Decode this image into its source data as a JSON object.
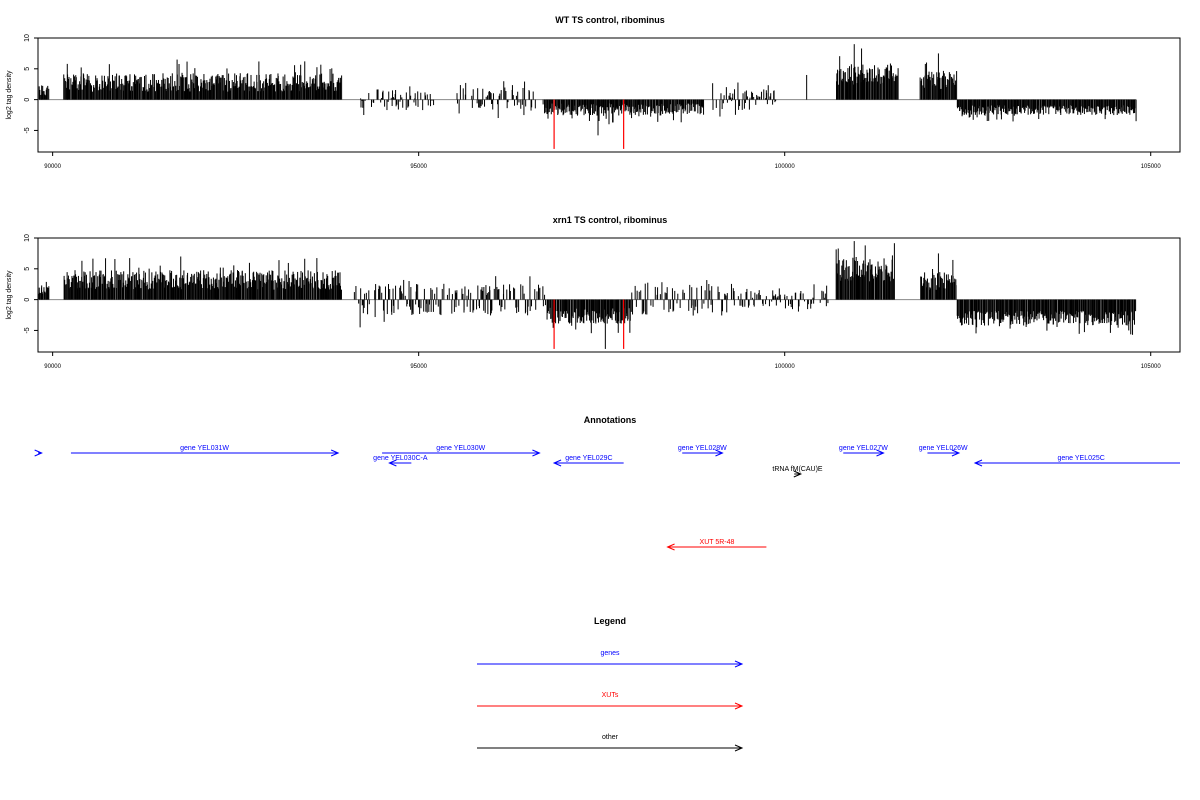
{
  "colors": {
    "genes": "#0000ff",
    "xuts": "#ff0000",
    "other": "#000000",
    "signal": "#000000",
    "highlight": "#ff0000",
    "baseline": "#888888"
  },
  "chart_data": [
    {
      "type": "bar",
      "title": "WT TS control, ribominus",
      "ylabel": "log2 tag density",
      "xlim": [
        89800,
        105400
      ],
      "ylim": [
        -8.5,
        10
      ],
      "xticks": [
        90000,
        95000,
        100000,
        105000
      ],
      "xtick_labels": [
        "90000",
        "95000",
        "100000",
        "105000"
      ],
      "yticks": [
        -5,
        0,
        5,
        10
      ],
      "ytick_labels": [
        "-5",
        "0",
        "5",
        "10"
      ],
      "grid": false,
      "signal_segments": [
        {
          "start": 89800,
          "end": 89950,
          "strand": "+",
          "mean": 1.5,
          "spread": 0.8
        },
        {
          "start": 90150,
          "end": 93950,
          "strand": "+",
          "mean": 2.8,
          "spread": 1.5
        },
        {
          "start": 94200,
          "end": 95300,
          "strand": "mixed",
          "mean": 0.9,
          "spread": 0.8
        },
        {
          "start": 95500,
          "end": 96600,
          "strand": "mixed",
          "mean": 1.2,
          "spread": 0.8
        },
        {
          "start": 96700,
          "end": 98900,
          "strand": "-",
          "mean": 1.6,
          "spread": 1.0
        },
        {
          "start": 99000,
          "end": 99900,
          "strand": "mixed",
          "mean": 1.0,
          "spread": 0.8
        },
        {
          "start": 100700,
          "end": 101550,
          "strand": "+",
          "mean": 4.2,
          "spread": 1.8
        },
        {
          "start": 101850,
          "end": 102350,
          "strand": "+",
          "mean": 3.2,
          "spread": 1.5
        },
        {
          "start": 102350,
          "end": 104800,
          "strand": "-",
          "mean": 1.7,
          "spread": 0.8
        }
      ],
      "peaks": [
        {
          "x": 89850,
          "y": 2.3
        },
        {
          "x": 90200,
          "y": 5.8
        },
        {
          "x": 91700,
          "y": 6.5
        },
        {
          "x": 94250,
          "y": -2.5
        },
        {
          "x": 96900,
          "y": -2.5
        },
        {
          "x": 97450,
          "y": -5.8
        },
        {
          "x": 97600,
          "y": -4.0
        },
        {
          "x": 100300,
          "y": 4.0
        },
        {
          "x": 100950,
          "y": 9.0
        },
        {
          "x": 101050,
          "y": 8.3
        },
        {
          "x": 102100,
          "y": 7.5
        },
        {
          "x": 104800,
          "y": -3.5
        }
      ],
      "highlight_bars": [
        {
          "x": 96850,
          "y": -8.0
        },
        {
          "x": 97800,
          "y": -8.0
        }
      ]
    },
    {
      "type": "bar",
      "title": "xrn1 TS control, ribominus",
      "ylabel": "log2 tag density",
      "xlim": [
        89800,
        105400
      ],
      "ylim": [
        -8.5,
        10
      ],
      "xticks": [
        90000,
        95000,
        100000,
        105000
      ],
      "xtick_labels": [
        "90000",
        "95000",
        "100000",
        "105000"
      ],
      "yticks": [
        -5,
        0,
        5,
        10
      ],
      "ytick_labels": [
        "-5",
        "0",
        "5",
        "10"
      ],
      "grid": false,
      "signal_segments": [
        {
          "start": 89800,
          "end": 89950,
          "strand": "+",
          "mean": 1.5,
          "spread": 0.8
        },
        {
          "start": 90150,
          "end": 93950,
          "strand": "+",
          "mean": 3.2,
          "spread": 1.6
        },
        {
          "start": 94100,
          "end": 96750,
          "strand": "mixed",
          "mean": 1.6,
          "spread": 1.0
        },
        {
          "start": 96750,
          "end": 97900,
          "strand": "-",
          "mean": 2.6,
          "spread": 1.3
        },
        {
          "start": 97900,
          "end": 99300,
          "strand": "mixed",
          "mean": 1.6,
          "spread": 1.0
        },
        {
          "start": 99300,
          "end": 100600,
          "strand": "mixed",
          "mean": 0.9,
          "spread": 0.7
        },
        {
          "start": 100700,
          "end": 101500,
          "strand": "+",
          "mean": 4.8,
          "spread": 2.0
        },
        {
          "start": 101850,
          "end": 102350,
          "strand": "+",
          "mean": 3.0,
          "spread": 1.5
        },
        {
          "start": 102350,
          "end": 104800,
          "strand": "-",
          "mean": 3.0,
          "spread": 1.2
        }
      ],
      "peaks": [
        {
          "x": 89850,
          "y": 2.3
        },
        {
          "x": 90400,
          "y": 6.3
        },
        {
          "x": 91750,
          "y": 7.0
        },
        {
          "x": 94200,
          "y": -4.5
        },
        {
          "x": 97550,
          "y": -8.0
        },
        {
          "x": 100950,
          "y": 9.5
        },
        {
          "x": 101100,
          "y": 8.8
        },
        {
          "x": 102100,
          "y": 7.5
        },
        {
          "x": 104700,
          "y": -5.0
        }
      ],
      "highlight_bars": [
        {
          "x": 96850,
          "y": -8.0
        },
        {
          "x": 97800,
          "y": -8.0
        }
      ]
    }
  ],
  "annotations": {
    "title": "Annotations",
    "features": [
      {
        "label": "",
        "category": "genes",
        "start": 89000,
        "end": 89850,
        "direction": "right",
        "row": 0
      },
      {
        "label": "gene YEL031W",
        "category": "genes",
        "start": 90250,
        "end": 93900,
        "direction": "right",
        "row": 0
      },
      {
        "label": "gene YEL030W",
        "category": "genes",
        "start": 94500,
        "end": 96650,
        "direction": "right",
        "row": 0
      },
      {
        "label": "gene YEL030C-A",
        "category": "genes",
        "start": 94600,
        "end": 94900,
        "direction": "left",
        "row": 1
      },
      {
        "label": "gene YEL029C",
        "category": "genes",
        "start": 96850,
        "end": 97800,
        "direction": "left",
        "row": 1
      },
      {
        "label": "gene YEL028W",
        "category": "genes",
        "start": 98600,
        "end": 99150,
        "direction": "right",
        "row": 0
      },
      {
        "label": "tRNA fM(CAU)E",
        "category": "other",
        "start": 100130,
        "end": 100220,
        "direction": "right",
        "row": 2
      },
      {
        "label": "gene YEL027W",
        "category": "genes",
        "start": 100800,
        "end": 101350,
        "direction": "right",
        "row": 0
      },
      {
        "label": "gene YEL026W",
        "category": "genes",
        "start": 101950,
        "end": 102380,
        "direction": "right",
        "row": 0
      },
      {
        "label": "gene YEL025C",
        "category": "genes",
        "start": 102600,
        "end": 105500,
        "direction": "left",
        "row": 1
      },
      {
        "label": "XUT 5R-48",
        "category": "xuts",
        "start": 98400,
        "end": 99750,
        "direction": "left",
        "row": 3
      }
    ]
  },
  "legend": {
    "title": "Legend",
    "items": [
      {
        "label": "genes",
        "category": "genes"
      },
      {
        "label": "XUTs",
        "category": "xuts"
      },
      {
        "label": "other",
        "category": "other"
      }
    ]
  }
}
